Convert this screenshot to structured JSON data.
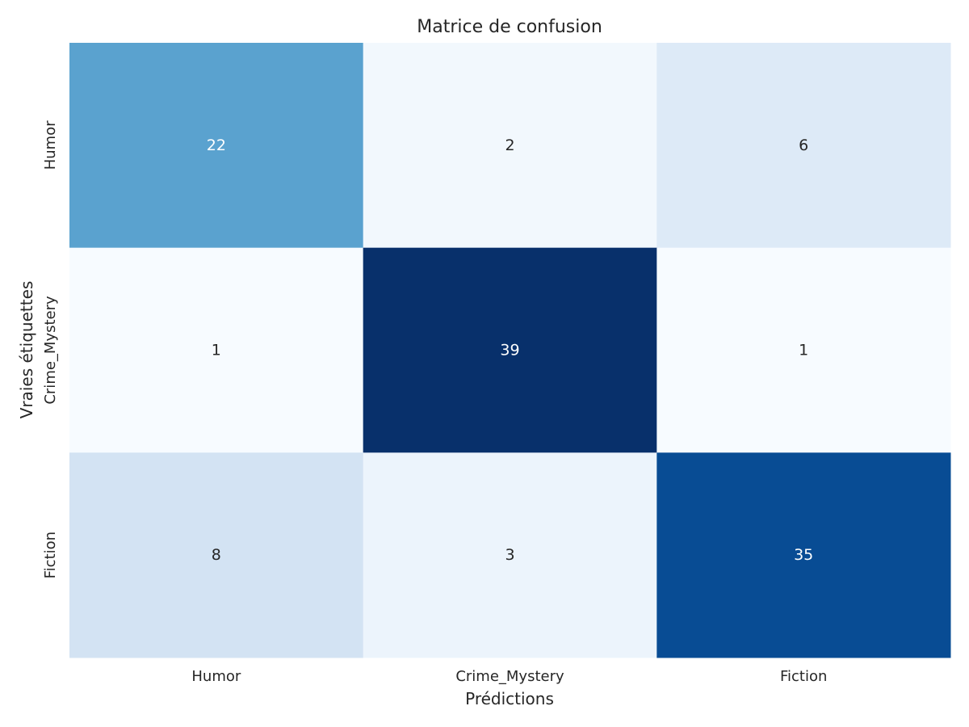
{
  "chart_data": {
    "type": "heatmap",
    "title": "Matrice de confusion",
    "xlabel": "Prédictions",
    "ylabel": "Vraies étiquettes",
    "x_categories": [
      "Humor",
      "Crime_Mystery",
      "Fiction"
    ],
    "y_categories": [
      "Humor",
      "Crime_Mystery",
      "Fiction"
    ],
    "values": [
      [
        22,
        2,
        6
      ],
      [
        1,
        39,
        1
      ],
      [
        8,
        3,
        35
      ]
    ],
    "colormap": "Blues",
    "color_min": "#f7fbff",
    "color_max": "#08306b",
    "grid": false,
    "colorbar": false
  }
}
